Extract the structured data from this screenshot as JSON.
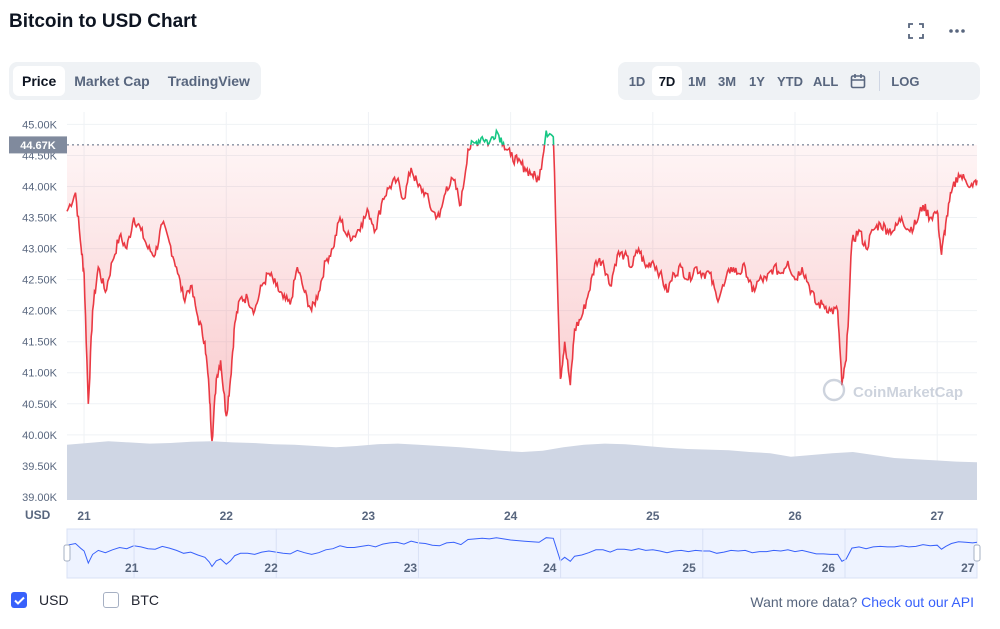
{
  "title": "Bitcoin to USD Chart",
  "icons": {
    "fullscreen": "fullscreen-icon",
    "more": "more-icon",
    "calendar": "calendar-icon",
    "watermark": "coinmarketcap-logo-icon"
  },
  "tabs": [
    {
      "label": "Price",
      "active": true
    },
    {
      "label": "Market Cap",
      "active": false
    },
    {
      "label": "TradingView",
      "active": false
    }
  ],
  "ranges": [
    {
      "label": "1D",
      "active": false
    },
    {
      "label": "7D",
      "active": true
    },
    {
      "label": "1M",
      "active": false
    },
    {
      "label": "3M",
      "active": false
    },
    {
      "label": "1Y",
      "active": false
    },
    {
      "label": "YTD",
      "active": false
    },
    {
      "label": "ALL",
      "active": false
    }
  ],
  "log_label": "LOG",
  "watermark": "CoinMarketCap",
  "currency": {
    "usd_label": "USD",
    "usd_checked": true,
    "btc_label": "BTC",
    "btc_checked": false
  },
  "api": {
    "text": "Want more data?",
    "link": "Check out our API"
  },
  "colors": {
    "up": "#16c784",
    "down": "#ea3943",
    "accent": "#3861fb",
    "volume": "#cfd6e4"
  },
  "chart_data": {
    "type": "line",
    "unit_label": "USD",
    "y_ticks": [
      "45.00K",
      "44.50K",
      "44.00K",
      "43.50K",
      "43.00K",
      "42.50K",
      "42.00K",
      "41.50K",
      "41.00K",
      "40.50K",
      "40.00K",
      "39.50K",
      "39.00K"
    ],
    "y_tick_values": [
      45000,
      44500,
      44000,
      43500,
      43000,
      42500,
      42000,
      41500,
      41000,
      40500,
      40000,
      39500,
      39000
    ],
    "ylim": [
      38950,
      45200
    ],
    "x_ticks": [
      "21",
      "22",
      "23",
      "24",
      "25",
      "26",
      "27"
    ],
    "x_tick_positions": [
      21,
      22,
      23,
      24,
      25,
      26,
      27
    ],
    "xlim": [
      20.88,
      27.28
    ],
    "current_price": 44670,
    "current_price_label": "44.67K",
    "baseline": 44670,
    "series": [
      {
        "x": [
          20.88,
          20.94,
          20.98,
          21.0,
          21.03,
          21.06,
          21.1,
          21.15,
          21.2,
          21.25,
          21.3,
          21.35,
          21.4,
          21.45,
          21.5,
          21.55,
          21.6,
          21.65,
          21.7,
          21.75,
          21.8,
          21.85,
          21.88,
          21.9,
          21.93,
          21.96,
          22.0,
          22.03,
          22.06,
          22.1,
          22.15,
          22.2,
          22.25,
          22.3,
          22.35,
          22.4,
          22.45,
          22.5,
          22.55,
          22.6,
          22.65,
          22.7,
          22.75,
          22.8,
          22.85,
          22.9,
          22.95,
          23.0,
          23.05,
          23.1,
          23.15,
          23.2,
          23.25,
          23.3,
          23.35,
          23.4,
          23.45,
          23.5,
          23.55,
          23.6,
          23.65,
          23.7,
          23.75,
          23.8,
          23.85,
          23.9,
          23.95,
          24.0,
          24.05,
          24.1,
          24.15,
          24.2,
          24.25,
          24.3,
          24.35,
          24.38,
          24.42,
          24.45,
          24.5,
          24.55,
          24.6,
          24.65,
          24.7,
          24.75,
          24.8,
          24.85,
          24.9,
          24.95,
          25.0,
          25.05,
          25.1,
          25.15,
          25.2,
          25.25,
          25.3,
          25.35,
          25.4,
          25.45,
          25.5,
          25.55,
          25.6,
          25.65,
          25.7,
          25.75,
          25.8,
          25.85,
          25.9,
          25.95,
          26.0,
          26.05,
          26.1,
          26.15,
          26.2,
          26.25,
          26.3,
          26.33,
          26.36,
          26.4,
          26.45,
          26.5,
          26.55,
          26.6,
          26.65,
          26.7,
          26.75,
          26.8,
          26.85,
          26.9,
          26.95,
          27.0,
          27.03,
          27.06,
          27.1,
          27.15,
          27.2,
          27.25,
          27.28
        ],
        "y": [
          43600,
          43900,
          43000,
          42600,
          40500,
          42000,
          42700,
          42300,
          42800,
          43200,
          43000,
          43500,
          43300,
          43000,
          42900,
          43400,
          43100,
          42700,
          42200,
          42400,
          41900,
          41500,
          40700,
          39900,
          40900,
          41200,
          40300,
          40900,
          41800,
          42200,
          42200,
          42000,
          42400,
          42600,
          42400,
          42200,
          42100,
          42700,
          42300,
          42000,
          42300,
          42800,
          43000,
          43500,
          43200,
          43200,
          43400,
          43600,
          43300,
          43800,
          44000,
          44100,
          43800,
          44300,
          44000,
          43900,
          43600,
          43500,
          44000,
          44100,
          43700,
          44600,
          44700,
          44800,
          44700,
          44900,
          44700,
          44500,
          44400,
          44300,
          44200,
          44100,
          44900,
          44800,
          40900,
          41500,
          40800,
          41700,
          41900,
          42300,
          42800,
          42800,
          42400,
          42900,
          42900,
          42700,
          43000,
          42700,
          42800,
          42600,
          42300,
          42600,
          42700,
          42500,
          42700,
          42600,
          42600,
          42200,
          42400,
          42700,
          42600,
          42700,
          42300,
          42500,
          42500,
          42700,
          42600,
          42800,
          42500,
          42700,
          42400,
          42100,
          42100,
          42000,
          42000,
          40800,
          41200,
          43100,
          43300,
          43000,
          43300,
          43400,
          43300,
          43300,
          43500,
          43300,
          43400,
          43700,
          43500,
          43600,
          42900,
          43400,
          43900,
          44200,
          44100,
          44000,
          44100
        ]
      }
    ],
    "volume_relative": [
      0.92,
      0.95,
      0.98,
      0.96,
      0.94,
      0.95,
      0.97,
      0.98,
      0.96,
      0.95,
      0.93,
      0.92,
      0.9,
      0.88,
      0.9,
      0.93,
      0.94,
      0.92,
      0.9,
      0.88,
      0.85,
      0.82,
      0.8,
      0.82,
      0.88,
      0.92,
      0.94,
      0.93,
      0.9,
      0.87,
      0.85,
      0.84,
      0.83,
      0.8,
      0.78,
      0.72,
      0.75,
      0.78,
      0.8,
      0.75,
      0.7,
      0.68,
      0.66,
      0.64,
      0.63
    ]
  }
}
